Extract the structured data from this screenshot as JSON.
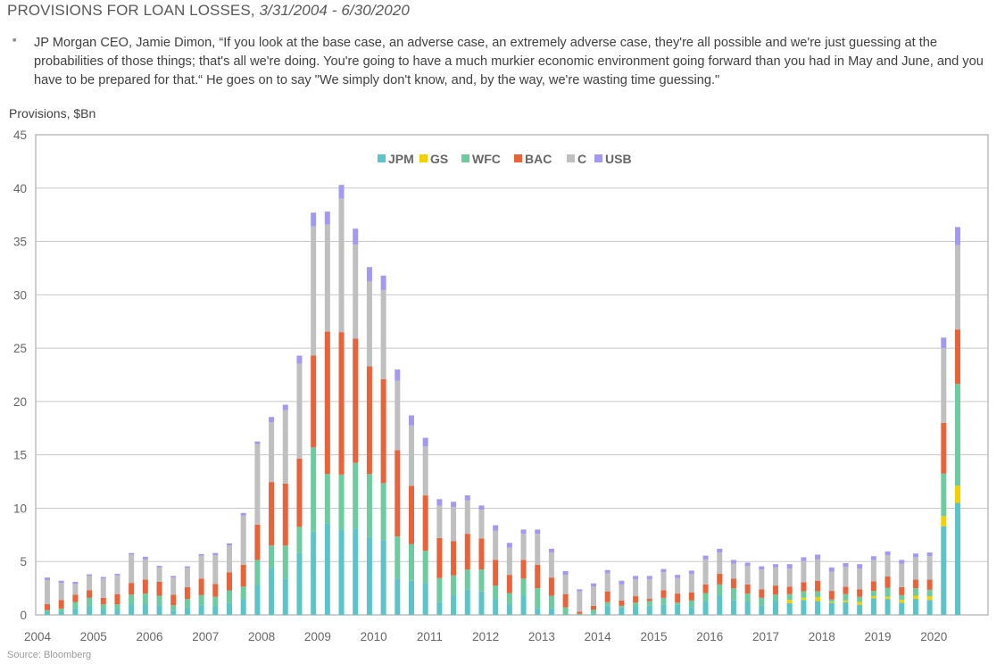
{
  "header": {
    "title_main": "PROVISIONS FOR LOAN LOSSES, ",
    "title_dates": "3/31/2004 - 6/30/2020",
    "bullet_icon": "square-bullet",
    "quote": "JP Morgan CEO, Jamie Dimon, “If you look at the base case, an adverse case, an extremely adverse case, they're all possible and we're just guessing at the probabilities of those things; that's all we're doing. You're going to have a much murkier economic environment going forward than you had in May and June, and you have to be prepared for that.“ He goes on to say \"We simply don't know, and, by the way, we're wasting time guessing.\""
  },
  "source": "Source: Bloomberg",
  "chart_data": {
    "type": "bar",
    "stacked": true,
    "title": "",
    "xlabel": "",
    "ylabel": "Provisions, $Bn",
    "ylim": [
      0,
      45
    ],
    "yticks": [
      0,
      5,
      10,
      15,
      20,
      25,
      30,
      35,
      40,
      45
    ],
    "grid": true,
    "legend": "top-center",
    "x_tick_labels": [
      "2004",
      "2005",
      "2006",
      "2007",
      "2008",
      "2009",
      "2010",
      "2011",
      "2012",
      "2013",
      "2014",
      "2015",
      "2016",
      "2017",
      "2018",
      "2019",
      "2020"
    ],
    "categories": [
      "2004Q1",
      "2004Q2",
      "2004Q3",
      "2004Q4",
      "2005Q1",
      "2005Q2",
      "2005Q3",
      "2005Q4",
      "2006Q1",
      "2006Q2",
      "2006Q3",
      "2006Q4",
      "2007Q1",
      "2007Q2",
      "2007Q3",
      "2007Q4",
      "2008Q1",
      "2008Q2",
      "2008Q3",
      "2008Q4",
      "2009Q1",
      "2009Q2",
      "2009Q3",
      "2009Q4",
      "2010Q1",
      "2010Q2",
      "2010Q3",
      "2010Q4",
      "2011Q1",
      "2011Q2",
      "2011Q3",
      "2011Q4",
      "2012Q1",
      "2012Q2",
      "2012Q3",
      "2012Q4",
      "2013Q1",
      "2013Q2",
      "2013Q3",
      "2013Q4",
      "2014Q1",
      "2014Q2",
      "2014Q3",
      "2014Q4",
      "2015Q1",
      "2015Q2",
      "2015Q3",
      "2015Q4",
      "2016Q1",
      "2016Q2",
      "2016Q3",
      "2016Q4",
      "2017Q1",
      "2017Q2",
      "2017Q3",
      "2017Q4",
      "2018Q1",
      "2018Q2",
      "2018Q3",
      "2018Q4",
      "2019Q1",
      "2019Q2",
      "2019Q3",
      "2019Q4",
      "2020Q1",
      "2020Q2"
    ],
    "series": [
      {
        "name": "JPM",
        "color": "#5bc4c8",
        "values": [
          0.25,
          0.3,
          0.6,
          0.8,
          0.5,
          0.5,
          1.0,
          1.0,
          0.9,
          0.4,
          0.7,
          0.9,
          0.8,
          1.1,
          1.5,
          2.8,
          4.4,
          3.4,
          5.8,
          7.8,
          8.6,
          8.0,
          8.1,
          7.3,
          7.0,
          3.4,
          3.2,
          3.0,
          1.2,
          1.8,
          2.4,
          2.2,
          1.5,
          1.0,
          1.8,
          0.65,
          0.6,
          0.05,
          0.0,
          0.1,
          0.85,
          0.7,
          0.75,
          0.85,
          0.95,
          0.95,
          0.7,
          1.25,
          1.8,
          1.4,
          1.25,
          0.85,
          1.3,
          1.1,
          1.4,
          1.3,
          1.15,
          1.2,
          0.95,
          1.55,
          1.5,
          1.15,
          1.5,
          1.4,
          8.3,
          10.5
        ]
      },
      {
        "name": "GS",
        "color": "#f5d000",
        "values": [
          0,
          0,
          0,
          0,
          0,
          0,
          0,
          0,
          0,
          0,
          0,
          0,
          0,
          0,
          0,
          0,
          0,
          0,
          0,
          0,
          0,
          0,
          0,
          0,
          0,
          0,
          0,
          0,
          0,
          0,
          0,
          0,
          0,
          0,
          0,
          0,
          0,
          0,
          0,
          0,
          0,
          0,
          0,
          0,
          0,
          0,
          0,
          0,
          0,
          0,
          0,
          0,
          0,
          0.3,
          0.2,
          0.35,
          0.1,
          0.15,
          0.25,
          0.2,
          0.2,
          0.25,
          0.3,
          0.35,
          0.95,
          1.6
        ]
      },
      {
        "name": "WFC",
        "color": "#6ccb9f",
        "values": [
          0.2,
          0.3,
          0.6,
          0.8,
          0.5,
          0.5,
          0.9,
          1.0,
          0.9,
          0.5,
          0.8,
          0.95,
          0.9,
          1.2,
          1.15,
          2.35,
          2.1,
          3.1,
          2.45,
          7.9,
          4.6,
          5.15,
          6.15,
          5.9,
          5.35,
          3.95,
          3.45,
          3.0,
          2.25,
          1.9,
          1.85,
          2.05,
          1.25,
          1.05,
          1.6,
          1.85,
          1.2,
          0.65,
          0.1,
          0.4,
          0.35,
          0.15,
          0.4,
          0.45,
          0.65,
          0.2,
          0.65,
          0.8,
          1.05,
          1.1,
          0.75,
          0.75,
          0.6,
          0.55,
          0.6,
          0.55,
          0.2,
          0.6,
          0.5,
          0.5,
          0.85,
          0.45,
          0.7,
          0.6,
          4.0,
          9.55
        ]
      },
      {
        "name": "BAC",
        "color": "#e8623a",
        "values": [
          0.55,
          0.8,
          0.7,
          0.7,
          0.6,
          0.95,
          1.1,
          1.3,
          1.3,
          1.0,
          1.1,
          1.55,
          1.2,
          1.7,
          2.05,
          3.3,
          5.95,
          5.8,
          6.4,
          8.6,
          13.35,
          13.35,
          11.65,
          10.1,
          9.75,
          8.1,
          5.45,
          5.2,
          3.75,
          3.2,
          3.35,
          2.9,
          2.4,
          1.7,
          1.75,
          2.2,
          1.7,
          1.25,
          0.2,
          0.35,
          1.0,
          0.5,
          0.6,
          0.2,
          0.7,
          0.85,
          0.75,
          0.8,
          1.0,
          0.9,
          0.85,
          0.8,
          0.85,
          0.7,
          0.85,
          1.0,
          0.8,
          0.7,
          0.7,
          0.9,
          1.05,
          0.75,
          0.8,
          0.95,
          4.75,
          5.1
        ]
      },
      {
        "name": "C",
        "color": "#bfbfbf",
        "values": [
          2.25,
          1.6,
          1.0,
          1.35,
          1.8,
          1.75,
          2.65,
          1.9,
          1.35,
          1.6,
          1.8,
          2.15,
          2.7,
          2.5,
          4.6,
          7.55,
          5.6,
          6.9,
          8.9,
          12.1,
          10.05,
          12.5,
          8.8,
          7.95,
          8.35,
          6.5,
          5.65,
          4.6,
          3.05,
          3.2,
          3.15,
          2.7,
          2.75,
          2.55,
          2.45,
          2.9,
          2.35,
          1.8,
          1.9,
          1.8,
          1.7,
          1.5,
          1.6,
          1.85,
          1.7,
          1.45,
          1.75,
          2.35,
          2.0,
          1.4,
          1.75,
          1.85,
          1.7,
          1.7,
          2.0,
          2.0,
          1.8,
          1.85,
          1.95,
          2.0,
          2.0,
          2.2,
          2.1,
          2.2,
          7.0,
          7.9
        ]
      },
      {
        "name": "USB",
        "color": "#a29af0",
        "values": [
          0.25,
          0.2,
          0.2,
          0.15,
          0.15,
          0.15,
          0.15,
          0.25,
          0.15,
          0.15,
          0.15,
          0.15,
          0.2,
          0.2,
          0.25,
          0.25,
          0.5,
          0.5,
          0.75,
          1.3,
          1.2,
          1.3,
          1.5,
          1.35,
          1.35,
          1.05,
          0.95,
          0.8,
          0.6,
          0.5,
          0.45,
          0.4,
          0.5,
          0.45,
          0.4,
          0.4,
          0.35,
          0.35,
          0.2,
          0.3,
          0.3,
          0.35,
          0.3,
          0.3,
          0.3,
          0.3,
          0.3,
          0.35,
          0.35,
          0.35,
          0.3,
          0.3,
          0.3,
          0.4,
          0.35,
          0.45,
          0.4,
          0.35,
          0.4,
          0.35,
          0.35,
          0.35,
          0.35,
          0.35,
          0.99,
          1.7
        ]
      }
    ]
  }
}
